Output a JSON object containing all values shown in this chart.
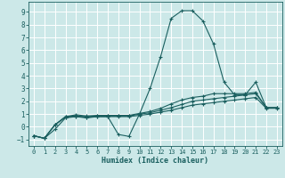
{
  "xlabel": "Humidex (Indice chaleur)",
  "xlim": [
    -0.5,
    23.5
  ],
  "ylim": [
    -1.5,
    9.8
  ],
  "xticks": [
    0,
    1,
    2,
    3,
    4,
    5,
    6,
    7,
    8,
    9,
    10,
    11,
    12,
    13,
    14,
    15,
    16,
    17,
    18,
    19,
    20,
    21,
    22,
    23
  ],
  "yticks": [
    -1,
    0,
    1,
    2,
    3,
    4,
    5,
    6,
    7,
    8,
    9
  ],
  "bg_color": "#cce8e8",
  "grid_color": "#ffffff",
  "line_color": "#1a5f5f",
  "line1_x": [
    0,
    1,
    2,
    3,
    4,
    5,
    6,
    7,
    8,
    9,
    10,
    11,
    12,
    13,
    14,
    15,
    16,
    17,
    18,
    19,
    20,
    21,
    22,
    23
  ],
  "line1_y": [
    -0.7,
    -0.9,
    -0.2,
    0.7,
    0.8,
    0.7,
    0.8,
    0.8,
    -0.6,
    -0.75,
    1.0,
    3.0,
    5.5,
    8.5,
    9.1,
    9.1,
    8.3,
    6.5,
    3.5,
    2.5,
    2.5,
    3.5,
    1.5,
    1.5
  ],
  "line2_x": [
    0,
    1,
    2,
    3,
    4,
    5,
    6,
    7,
    8,
    9,
    10,
    11,
    12,
    13,
    14,
    15,
    16,
    17,
    18,
    19,
    20,
    21,
    22,
    23
  ],
  "line2_y": [
    -0.7,
    -0.9,
    0.15,
    0.8,
    0.95,
    0.85,
    0.9,
    0.9,
    0.9,
    0.9,
    1.05,
    1.2,
    1.45,
    1.8,
    2.1,
    2.3,
    2.4,
    2.6,
    2.6,
    2.6,
    2.6,
    2.7,
    1.5,
    1.5
  ],
  "line3_x": [
    0,
    1,
    2,
    3,
    4,
    5,
    6,
    7,
    8,
    9,
    10,
    11,
    12,
    13,
    14,
    15,
    16,
    17,
    18,
    19,
    20,
    21,
    22,
    23
  ],
  "line3_y": [
    -0.7,
    -0.9,
    0.15,
    0.8,
    0.85,
    0.8,
    0.85,
    0.85,
    0.85,
    0.85,
    1.0,
    1.1,
    1.3,
    1.5,
    1.75,
    2.0,
    2.1,
    2.2,
    2.3,
    2.4,
    2.5,
    2.6,
    1.5,
    1.5
  ],
  "line4_x": [
    0,
    1,
    2,
    3,
    4,
    5,
    6,
    7,
    8,
    9,
    10,
    11,
    12,
    13,
    14,
    15,
    16,
    17,
    18,
    19,
    20,
    21,
    22,
    23
  ],
  "line4_y": [
    -0.7,
    -0.9,
    0.15,
    0.75,
    0.8,
    0.75,
    0.8,
    0.8,
    0.8,
    0.8,
    0.9,
    1.0,
    1.15,
    1.3,
    1.5,
    1.7,
    1.8,
    1.9,
    2.0,
    2.1,
    2.2,
    2.3,
    1.45,
    1.45
  ]
}
